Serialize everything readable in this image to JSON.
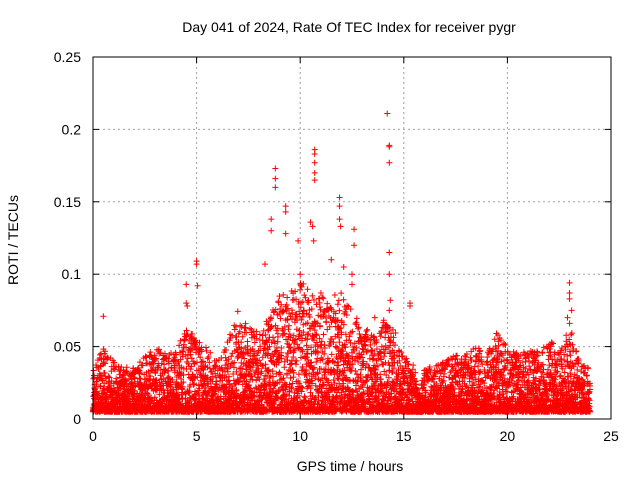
{
  "chart_data": {
    "type": "scatter",
    "title": "Day 041 of 2024, Rate Of TEC Index for receiver pygr",
    "xlabel": "GPS time / hours",
    "ylabel": "ROTI / TECUs",
    "xlim": [
      0,
      25
    ],
    "ylim": [
      0,
      0.25
    ],
    "xticks": [
      0,
      5,
      10,
      15,
      20,
      25
    ],
    "xtick_labels": [
      "0",
      "5",
      "10",
      "15",
      "20",
      "25"
    ],
    "yticks": [
      0,
      0.05,
      0.1,
      0.15,
      0.2,
      0.25
    ],
    "ytick_labels": [
      "0",
      "0.05",
      "0.1",
      "0.15",
      "0.2",
      "0.25"
    ],
    "grid": true,
    "marker": "+",
    "series_color": "#ff0000",
    "series": [
      {
        "points": [
          [
            0.5,
            0.071
          ],
          [
            4.5,
            0.093
          ],
          [
            4.5,
            0.08
          ],
          [
            4.55,
            0.078
          ],
          [
            5.0,
            0.109
          ],
          [
            5.0,
            0.107
          ],
          [
            5.05,
            0.092
          ],
          [
            8.3,
            0.107
          ],
          [
            8.6,
            0.138
          ],
          [
            8.6,
            0.13
          ],
          [
            8.8,
            0.173
          ],
          [
            8.8,
            0.166
          ],
          [
            8.8,
            0.16
          ],
          [
            9.3,
            0.147
          ],
          [
            9.3,
            0.143
          ],
          [
            9.3,
            0.128
          ],
          [
            9.9,
            0.123
          ],
          [
            10.0,
            0.1
          ],
          [
            10.5,
            0.136
          ],
          [
            10.6,
            0.133
          ],
          [
            10.7,
            0.186
          ],
          [
            10.7,
            0.183
          ],
          [
            10.7,
            0.177
          ],
          [
            10.7,
            0.17
          ],
          [
            10.7,
            0.165
          ],
          [
            10.65,
            0.123
          ],
          [
            11.0,
            0.087
          ],
          [
            11.5,
            0.11
          ],
          [
            11.9,
            0.153
          ],
          [
            11.9,
            0.147
          ],
          [
            11.9,
            0.138
          ],
          [
            11.95,
            0.133
          ],
          [
            12.1,
            0.105
          ],
          [
            12.6,
            0.131
          ],
          [
            12.6,
            0.12
          ],
          [
            12.5,
            0.1
          ],
          [
            12.5,
            0.093
          ],
          [
            13.6,
            0.07
          ],
          [
            14.2,
            0.211
          ],
          [
            14.3,
            0.188
          ],
          [
            14.3,
            0.189
          ],
          [
            14.3,
            0.177
          ],
          [
            14.3,
            0.115
          ],
          [
            14.3,
            0.1
          ],
          [
            14.35,
            0.082
          ],
          [
            14.3,
            0.075
          ],
          [
            15.3,
            0.08
          ],
          [
            15.3,
            0.078
          ],
          [
            23.0,
            0.094
          ],
          [
            23.0,
            0.087
          ],
          [
            23.0,
            0.083
          ],
          [
            23.1,
            0.075
          ],
          [
            23.0,
            0.066
          ],
          [
            22.9,
            0.07
          ]
        ]
      }
    ],
    "activity_envelope": [
      [
        0.0,
        0.028
      ],
      [
        0.5,
        0.045
      ],
      [
        1.0,
        0.035
      ],
      [
        1.5,
        0.032
      ],
      [
        2.0,
        0.03
      ],
      [
        2.5,
        0.038
      ],
      [
        3.0,
        0.045
      ],
      [
        3.5,
        0.04
      ],
      [
        4.0,
        0.042
      ],
      [
        4.5,
        0.06
      ],
      [
        5.0,
        0.05
      ],
      [
        5.5,
        0.045
      ],
      [
        6.0,
        0.035
      ],
      [
        6.5,
        0.05
      ],
      [
        7.0,
        0.07
      ],
      [
        7.5,
        0.06
      ],
      [
        8.0,
        0.055
      ],
      [
        8.5,
        0.065
      ],
      [
        9.0,
        0.08
      ],
      [
        9.5,
        0.085
      ],
      [
        10.0,
        0.09
      ],
      [
        10.5,
        0.085
      ],
      [
        11.0,
        0.08
      ],
      [
        11.5,
        0.09
      ],
      [
        12.0,
        0.085
      ],
      [
        12.5,
        0.07
      ],
      [
        13.0,
        0.06
      ],
      [
        13.5,
        0.055
      ],
      [
        14.0,
        0.065
      ],
      [
        14.5,
        0.06
      ],
      [
        15.0,
        0.04
      ],
      [
        15.5,
        0.035
      ],
      [
        15.7,
        0.012
      ],
      [
        16.0,
        0.03
      ],
      [
        16.5,
        0.032
      ],
      [
        17.0,
        0.035
      ],
      [
        17.5,
        0.04
      ],
      [
        18.0,
        0.042
      ],
      [
        18.5,
        0.045
      ],
      [
        19.0,
        0.04
      ],
      [
        19.5,
        0.055
      ],
      [
        20.0,
        0.045
      ],
      [
        20.5,
        0.04
      ],
      [
        21.0,
        0.042
      ],
      [
        21.5,
        0.045
      ],
      [
        22.0,
        0.052
      ],
      [
        22.5,
        0.04
      ],
      [
        23.0,
        0.06
      ],
      [
        23.5,
        0.035
      ],
      [
        24.0,
        0.03
      ]
    ]
  }
}
